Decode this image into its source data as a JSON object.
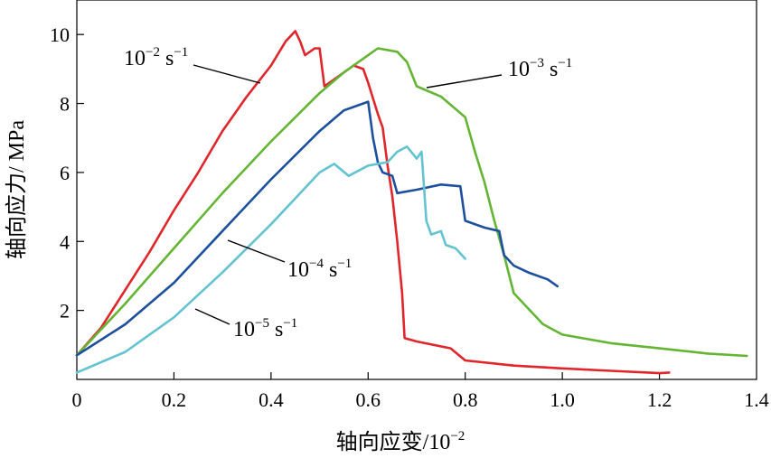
{
  "chart_data": {
    "type": "line",
    "xlabel": "轴向应变/10",
    "xlabel_exp": "−2",
    "ylabel": "轴向应力/ MPa",
    "xlim": [
      0,
      1.4
    ],
    "ylim": [
      0,
      11
    ],
    "x_ticks": [
      "0",
      "0.2",
      "0.4",
      "0.6",
      "0.8",
      "1.0",
      "1.2",
      "1.4"
    ],
    "y_ticks": [
      "2",
      "4",
      "6",
      "8",
      "10"
    ],
    "grid": false,
    "legend": "annotations",
    "series": [
      {
        "name": "10−2 s−1",
        "color": "#e0262a",
        "label_base": "10",
        "label_exp": "−2",
        "label_unit": " s",
        "label_unit_exp": "−1",
        "points": [
          [
            0.0,
            0.7
          ],
          [
            0.05,
            1.5
          ],
          [
            0.1,
            2.6
          ],
          [
            0.15,
            3.7
          ],
          [
            0.2,
            4.9
          ],
          [
            0.25,
            6.0
          ],
          [
            0.3,
            7.2
          ],
          [
            0.35,
            8.2
          ],
          [
            0.4,
            9.1
          ],
          [
            0.43,
            9.8
          ],
          [
            0.45,
            10.1
          ],
          [
            0.46,
            9.8
          ],
          [
            0.47,
            9.4
          ],
          [
            0.49,
            9.6
          ],
          [
            0.5,
            9.6
          ],
          [
            0.51,
            8.5
          ],
          [
            0.54,
            8.8
          ],
          [
            0.57,
            9.1
          ],
          [
            0.59,
            9.0
          ],
          [
            0.6,
            8.6
          ],
          [
            0.62,
            7.7
          ],
          [
            0.63,
            7.3
          ],
          [
            0.64,
            6.2
          ],
          [
            0.65,
            5.3
          ],
          [
            0.66,
            4.0
          ],
          [
            0.67,
            2.5
          ],
          [
            0.675,
            1.2
          ],
          [
            0.7,
            1.1
          ],
          [
            0.77,
            0.9
          ],
          [
            0.8,
            0.55
          ],
          [
            0.9,
            0.4
          ],
          [
            1.0,
            0.32
          ],
          [
            1.1,
            0.25
          ],
          [
            1.2,
            0.18
          ],
          [
            1.22,
            0.2
          ]
        ]
      },
      {
        "name": "10−3 s−1",
        "color": "#64b534",
        "label_base": "10",
        "label_exp": "−3",
        "label_unit": " s",
        "label_unit_exp": "−1",
        "points": [
          [
            0.0,
            0.7
          ],
          [
            0.1,
            2.2
          ],
          [
            0.2,
            3.8
          ],
          [
            0.3,
            5.4
          ],
          [
            0.4,
            6.9
          ],
          [
            0.5,
            8.3
          ],
          [
            0.55,
            8.9
          ],
          [
            0.6,
            9.4
          ],
          [
            0.62,
            9.6
          ],
          [
            0.66,
            9.5
          ],
          [
            0.68,
            9.2
          ],
          [
            0.7,
            8.5
          ],
          [
            0.75,
            8.2
          ],
          [
            0.8,
            7.6
          ],
          [
            0.82,
            6.6
          ],
          [
            0.84,
            5.7
          ],
          [
            0.86,
            4.6
          ],
          [
            0.88,
            3.6
          ],
          [
            0.9,
            2.5
          ],
          [
            0.92,
            2.2
          ],
          [
            0.96,
            1.6
          ],
          [
            1.0,
            1.3
          ],
          [
            1.1,
            1.05
          ],
          [
            1.2,
            0.9
          ],
          [
            1.3,
            0.75
          ],
          [
            1.38,
            0.68
          ]
        ]
      },
      {
        "name": "10−4 s−1",
        "color": "#1d4f9f",
        "label_base": "10",
        "label_exp": "−4",
        "label_unit": " s",
        "label_unit_exp": "−1",
        "points": [
          [
            0.0,
            0.7
          ],
          [
            0.1,
            1.6
          ],
          [
            0.2,
            2.8
          ],
          [
            0.3,
            4.3
          ],
          [
            0.4,
            5.8
          ],
          [
            0.5,
            7.2
          ],
          [
            0.55,
            7.8
          ],
          [
            0.6,
            8.05
          ],
          [
            0.61,
            7.0
          ],
          [
            0.62,
            6.3
          ],
          [
            0.63,
            6.0
          ],
          [
            0.65,
            5.9
          ],
          [
            0.66,
            5.4
          ],
          [
            0.7,
            5.5
          ],
          [
            0.75,
            5.65
          ],
          [
            0.79,
            5.6
          ],
          [
            0.8,
            4.6
          ],
          [
            0.84,
            4.4
          ],
          [
            0.87,
            4.3
          ],
          [
            0.88,
            3.6
          ],
          [
            0.9,
            3.3
          ],
          [
            0.93,
            3.1
          ],
          [
            0.97,
            2.9
          ],
          [
            0.99,
            2.7
          ]
        ]
      },
      {
        "name": "10−5 s−1",
        "color": "#63c3d1",
        "label_base": "10",
        "label_exp": "−5",
        "label_unit": " s",
        "label_unit_exp": "−1",
        "points": [
          [
            0.0,
            0.2
          ],
          [
            0.1,
            0.8
          ],
          [
            0.2,
            1.8
          ],
          [
            0.3,
            3.1
          ],
          [
            0.4,
            4.5
          ],
          [
            0.5,
            6.0
          ],
          [
            0.53,
            6.25
          ],
          [
            0.56,
            5.9
          ],
          [
            0.6,
            6.2
          ],
          [
            0.64,
            6.3
          ],
          [
            0.66,
            6.6
          ],
          [
            0.68,
            6.75
          ],
          [
            0.7,
            6.4
          ],
          [
            0.71,
            6.6
          ],
          [
            0.72,
            4.6
          ],
          [
            0.73,
            4.2
          ],
          [
            0.75,
            4.3
          ],
          [
            0.76,
            3.9
          ],
          [
            0.78,
            3.8
          ],
          [
            0.8,
            3.5
          ]
        ]
      }
    ]
  }
}
